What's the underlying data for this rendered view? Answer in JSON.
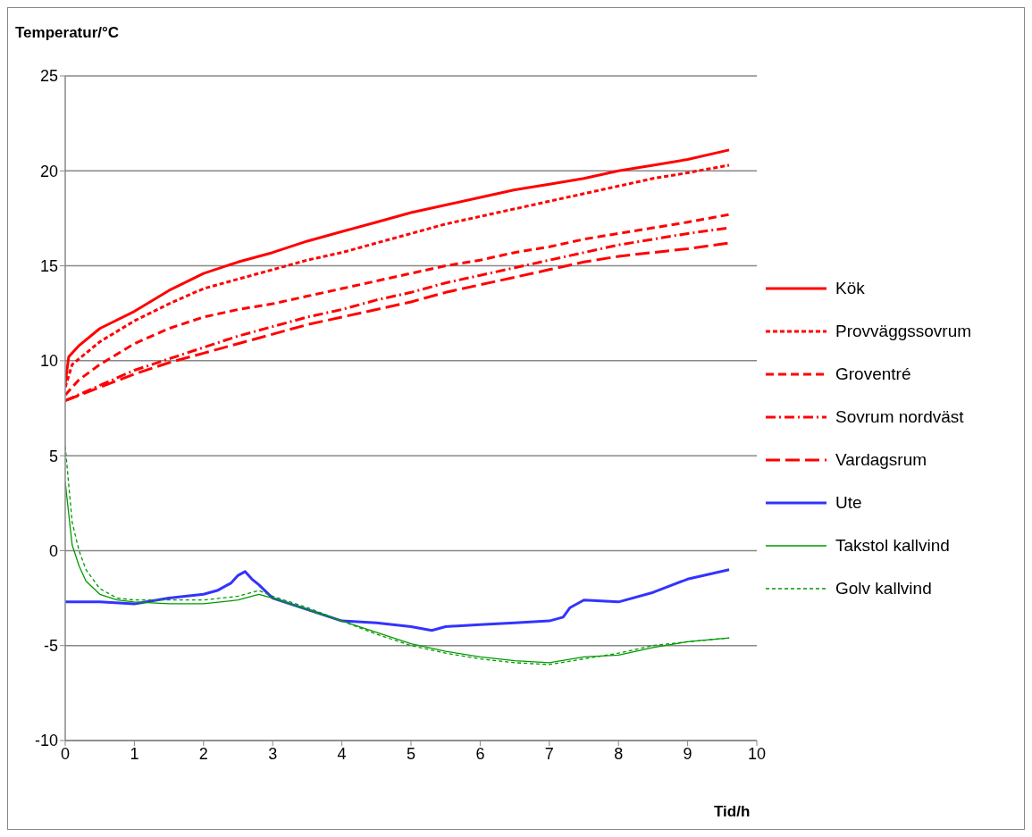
{
  "chart_data": {
    "type": "line",
    "xlabel": "Tid/h",
    "ylabel": "Temperatur/°C",
    "xlim": [
      0,
      10
    ],
    "xticks": [
      0,
      1,
      2,
      3,
      4,
      5,
      6,
      7,
      8,
      9,
      10
    ],
    "ylim": [
      -10,
      25
    ],
    "yticks": [
      -10,
      -5,
      0,
      5,
      10,
      15,
      20,
      25
    ],
    "grid": "y",
    "legend": "right",
    "marker": "none",
    "series": [
      {
        "name": "Kök",
        "color": "#ff0000",
        "line_style": "solid",
        "x": [
          0,
          0.05,
          0.2,
          0.5,
          1,
          1.5,
          2,
          2.5,
          3,
          3.5,
          4,
          4.5,
          5,
          5.5,
          6,
          6.5,
          7,
          7.5,
          8,
          8.5,
          9,
          9.6
        ],
        "values": [
          8.8,
          10.2,
          10.8,
          11.7,
          12.6,
          13.7,
          14.6,
          15.2,
          15.7,
          16.3,
          16.8,
          17.3,
          17.8,
          18.2,
          18.6,
          19.0,
          19.3,
          19.6,
          20.0,
          20.3,
          20.6,
          21.1
        ]
      },
      {
        "name": "Provväggssovrum",
        "color": "#ff0000",
        "line_style": "dotted",
        "x": [
          0,
          0.1,
          0.5,
          1,
          1.5,
          2,
          2.5,
          3,
          3.5,
          4,
          4.5,
          5,
          5.5,
          6,
          6.5,
          7,
          7.5,
          8,
          8.5,
          9,
          9.6
        ],
        "values": [
          8.6,
          9.8,
          11.0,
          12.1,
          13.0,
          13.8,
          14.3,
          14.8,
          15.3,
          15.7,
          16.2,
          16.7,
          17.2,
          17.6,
          18.0,
          18.4,
          18.8,
          19.2,
          19.6,
          19.9,
          20.3
        ]
      },
      {
        "name": "Groventré",
        "color": "#ff0000",
        "line_style": "dashed",
        "x": [
          0,
          0.2,
          0.5,
          1,
          1.5,
          2,
          2.5,
          3,
          3.5,
          4,
          4.5,
          5,
          5.5,
          6,
          6.5,
          7,
          7.5,
          8,
          8.5,
          9,
          9.6
        ],
        "values": [
          8.2,
          9.0,
          9.8,
          10.9,
          11.7,
          12.3,
          12.7,
          13.0,
          13.4,
          13.8,
          14.2,
          14.6,
          15.0,
          15.3,
          15.7,
          16.0,
          16.4,
          16.7,
          17.0,
          17.3,
          17.7
        ]
      },
      {
        "name": "Sovrum nordväst",
        "color": "#ff0000",
        "line_style": "dashed",
        "x": [
          0,
          0.5,
          1,
          1.5,
          2,
          2.5,
          3,
          3.5,
          4,
          4.5,
          5,
          5.5,
          6,
          6.5,
          7,
          7.5,
          8,
          8.5,
          9,
          9.6
        ],
        "values": [
          7.9,
          8.7,
          9.5,
          10.1,
          10.7,
          11.3,
          11.8,
          12.3,
          12.7,
          13.2,
          13.6,
          14.1,
          14.5,
          14.9,
          15.3,
          15.7,
          16.1,
          16.4,
          16.7,
          17.0
        ]
      },
      {
        "name": "Vardagsrum",
        "color": "#ff0000",
        "line_style": "dashed",
        "x": [
          0,
          0.5,
          1,
          1.5,
          2,
          2.5,
          3,
          3.5,
          4,
          4.5,
          5,
          5.5,
          6,
          6.5,
          7,
          7.5,
          8,
          8.5,
          9,
          9.6
        ],
        "values": [
          7.9,
          8.6,
          9.3,
          9.9,
          10.4,
          10.9,
          11.4,
          11.9,
          12.3,
          12.7,
          13.1,
          13.6,
          14.0,
          14.4,
          14.8,
          15.2,
          15.5,
          15.7,
          15.9,
          16.2
        ]
      },
      {
        "name": "Ute",
        "color": "#3333ff",
        "line_style": "solid",
        "x": [
          0,
          0.5,
          1,
          1.5,
          2,
          2.2,
          2.4,
          2.5,
          2.6,
          2.7,
          2.8,
          3,
          3.5,
          4,
          4.5,
          5,
          5.3,
          5.5,
          6,
          6.5,
          7,
          7.2,
          7.3,
          7.5,
          8,
          8.5,
          9,
          9.6
        ],
        "values": [
          -2.7,
          -2.7,
          -2.8,
          -2.5,
          -2.3,
          -2.1,
          -1.7,
          -1.3,
          -1.1,
          -1.5,
          -1.8,
          -2.5,
          -3.1,
          -3.7,
          -3.8,
          -4.0,
          -4.2,
          -4.0,
          -3.9,
          -3.8,
          -3.7,
          -3.5,
          -3.0,
          -2.6,
          -2.7,
          -2.2,
          -1.5,
          -1.0
        ]
      },
      {
        "name": "Takstol kallvind",
        "color": "#009900",
        "line_style": "solid",
        "x": [
          0,
          0.1,
          0.2,
          0.3,
          0.5,
          0.75,
          1,
          1.5,
          2,
          2.5,
          2.8,
          3,
          3.5,
          4,
          4.5,
          5,
          5.5,
          6,
          6.5,
          7,
          7.5,
          8,
          8.5,
          9,
          9.6
        ],
        "values": [
          3.6,
          0.3,
          -0.8,
          -1.6,
          -2.3,
          -2.6,
          -2.7,
          -2.8,
          -2.8,
          -2.6,
          -2.3,
          -2.5,
          -3.1,
          -3.7,
          -4.3,
          -4.9,
          -5.3,
          -5.6,
          -5.8,
          -5.9,
          -5.6,
          -5.5,
          -5.1,
          -4.8,
          -4.6
        ]
      },
      {
        "name": "Golv kallvind",
        "color": "#009900",
        "line_style": "dashed",
        "x": [
          0,
          0.1,
          0.2,
          0.3,
          0.5,
          0.75,
          1,
          1.5,
          2,
          2.5,
          2.8,
          3,
          3.5,
          4,
          4.5,
          5,
          5.5,
          6,
          6.5,
          7,
          7.5,
          8,
          8.5,
          9,
          9.6
        ],
        "values": [
          5.5,
          1.5,
          0.0,
          -1.0,
          -2.0,
          -2.5,
          -2.6,
          -2.6,
          -2.6,
          -2.4,
          -2.1,
          -2.4,
          -3.0,
          -3.7,
          -4.4,
          -5.0,
          -5.4,
          -5.7,
          -5.9,
          -6.0,
          -5.7,
          -5.4,
          -5.0,
          -4.8,
          -4.6
        ]
      }
    ]
  }
}
